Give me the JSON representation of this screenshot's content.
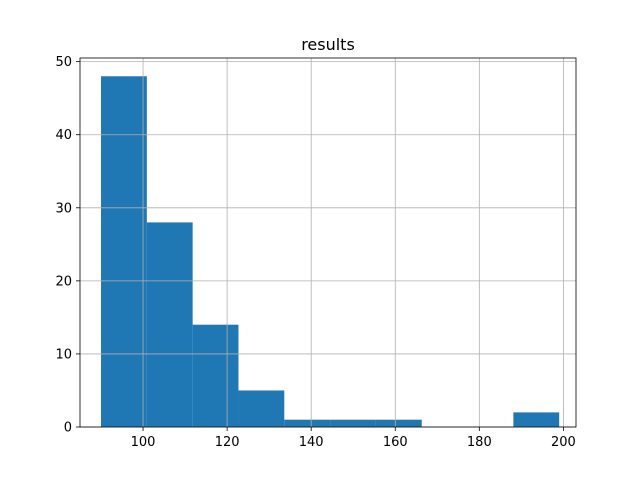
{
  "chart_data": {
    "type": "bar",
    "title": "results",
    "xlabel": "",
    "ylabel": "",
    "xlim": [
      85,
      203
    ],
    "ylim": [
      0,
      50.5
    ],
    "grid": true,
    "x_ticks": [
      100,
      120,
      140,
      160,
      180,
      200
    ],
    "y_ticks": [
      0,
      10,
      20,
      30,
      40,
      50
    ],
    "bar_color": "#1f77b4",
    "grid_color": "#b0b0b0",
    "bins": [
      {
        "start": 90.0,
        "end": 100.9,
        "count": 48
      },
      {
        "start": 100.9,
        "end": 111.8,
        "count": 28
      },
      {
        "start": 111.8,
        "end": 122.7,
        "count": 14
      },
      {
        "start": 122.7,
        "end": 133.6,
        "count": 5
      },
      {
        "start": 133.6,
        "end": 144.5,
        "count": 1
      },
      {
        "start": 144.5,
        "end": 155.4,
        "count": 1
      },
      {
        "start": 155.4,
        "end": 166.3,
        "count": 1
      },
      {
        "start": 166.3,
        "end": 177.2,
        "count": 0
      },
      {
        "start": 177.2,
        "end": 188.1,
        "count": 0
      },
      {
        "start": 188.1,
        "end": 199.0,
        "count": 2
      }
    ]
  }
}
